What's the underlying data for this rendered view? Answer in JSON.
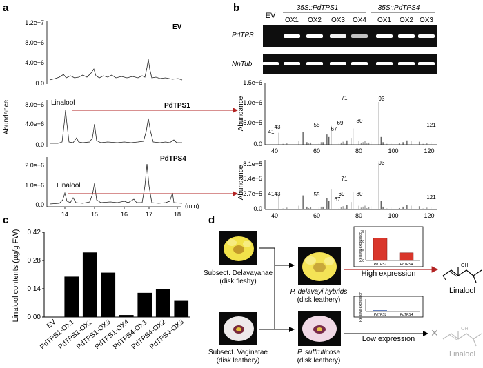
{
  "panels": {
    "a": {
      "label": "a",
      "ylabel": "Abundance",
      "xlabel": "(min)",
      "x_ticks": [
        "14",
        "15",
        "16",
        "17",
        "18"
      ],
      "traces": [
        {
          "title": "EV",
          "yticks": [
            "1.2e+7",
            "8.0e+6",
            "4.0e+6",
            "0.0"
          ],
          "annotation": ""
        },
        {
          "title": "PdTPS1",
          "yticks": [
            "8.0e+6",
            "4.0e+6",
            "0.0"
          ],
          "annotation": "Linalool"
        },
        {
          "title": "PdTPS4",
          "yticks": [
            "2.0e+6",
            "1.0e+6",
            "0.0"
          ],
          "annotation": "Linalool"
        }
      ]
    },
    "b": {
      "label": "b",
      "gel_header": {
        "ev": "EV",
        "group1": "35S::PdTPS1",
        "group2": "35S::PdTPS4"
      },
      "lanes": [
        "OX1",
        "OX2",
        "OX3",
        "OX4",
        "OX1",
        "OX2",
        "OX3"
      ],
      "gene_rows": [
        "PdTPS",
        "NnTub"
      ],
      "lane_band_intensity": {
        "PdTPS": [
          0.0,
          1.0,
          1.0,
          0.9,
          0.55,
          1.0,
          1.0,
          0.95
        ],
        "NnTub": [
          1.0,
          1.0,
          1.0,
          1.0,
          1.0,
          1.0,
          1.0,
          1.0
        ]
      },
      "spectra": [
        {
          "ylabel": "Abundance",
          "yticks": [
            "1.5e+6",
            "1.0e+6",
            "5.0e+5",
            "0.0"
          ],
          "peak_labels": [
            "41",
            "43",
            "55",
            "67",
            "69",
            "71",
            "80",
            "93",
            "121"
          ]
        },
        {
          "ylabel": "Abundance",
          "yticks": [
            "8.1e+5",
            "5.4e+5",
            "2.7e+5",
            "0.0"
          ],
          "peak_labels": [
            "41",
            "43",
            "55",
            "67",
            "69",
            "71",
            "80",
            "93",
            "121"
          ]
        }
      ],
      "x_ticks": [
        "40",
        "60",
        "80",
        "100",
        "120"
      ]
    },
    "c": {
      "label": "c"
    },
    "d": {
      "label": "d",
      "top_left_caption": [
        "Subsect. Delavayanae",
        "(disk fleshy)"
      ],
      "bottom_left_caption": [
        "Subsect. Vaginatae",
        "(disk leathery)"
      ],
      "top_mid_caption": [
        "P. delavayi hybrids",
        "(disk leathery)"
      ],
      "bottom_mid_caption": [
        "P. suffruticosa",
        "(disk leathery)"
      ],
      "high_expression": "High expression",
      "low_expression": "Low expression",
      "product_top": "Linalool",
      "product_bottom": "Linalool",
      "mini_chart_ylabel": "Relative expression",
      "mini_chart_categories": [
        "PdTPS1",
        "PdTPS4"
      ],
      "mini_top": {
        "yticks": [
          "0",
          "25",
          "50",
          "75"
        ],
        "values": [
          58,
          20
        ]
      },
      "mini_bottom": {
        "values": [
          1.5,
          0.4
        ]
      },
      "oh_label": "OH"
    }
  },
  "chart_data": {
    "type": "bar",
    "title": "",
    "xlabel": "",
    "ylabel": "Linalool contents (µg/g FW)",
    "ylim": [
      0,
      0.42
    ],
    "yticks": [
      "0.00",
      "0.14",
      "0.28",
      "0.42"
    ],
    "categories": [
      "EV",
      "PdTPS1-OX1",
      "PdTPS1-OX2",
      "PdTPS1-OX3",
      "PdTPS1-OX4",
      "PdTPS4-OX1",
      "PdTPS4-OX2",
      "PdTPS4-OX3"
    ],
    "values": [
      0.0,
      0.2,
      0.32,
      0.22,
      0.01,
      0.12,
      0.14,
      0.08
    ],
    "grid": false,
    "colors": {
      "bar": "#000000",
      "trace": "#222222",
      "arrow": "#b22222",
      "mini_bar_high": "#d9362b",
      "mini_bar_low": "#3a5fb0"
    }
  }
}
